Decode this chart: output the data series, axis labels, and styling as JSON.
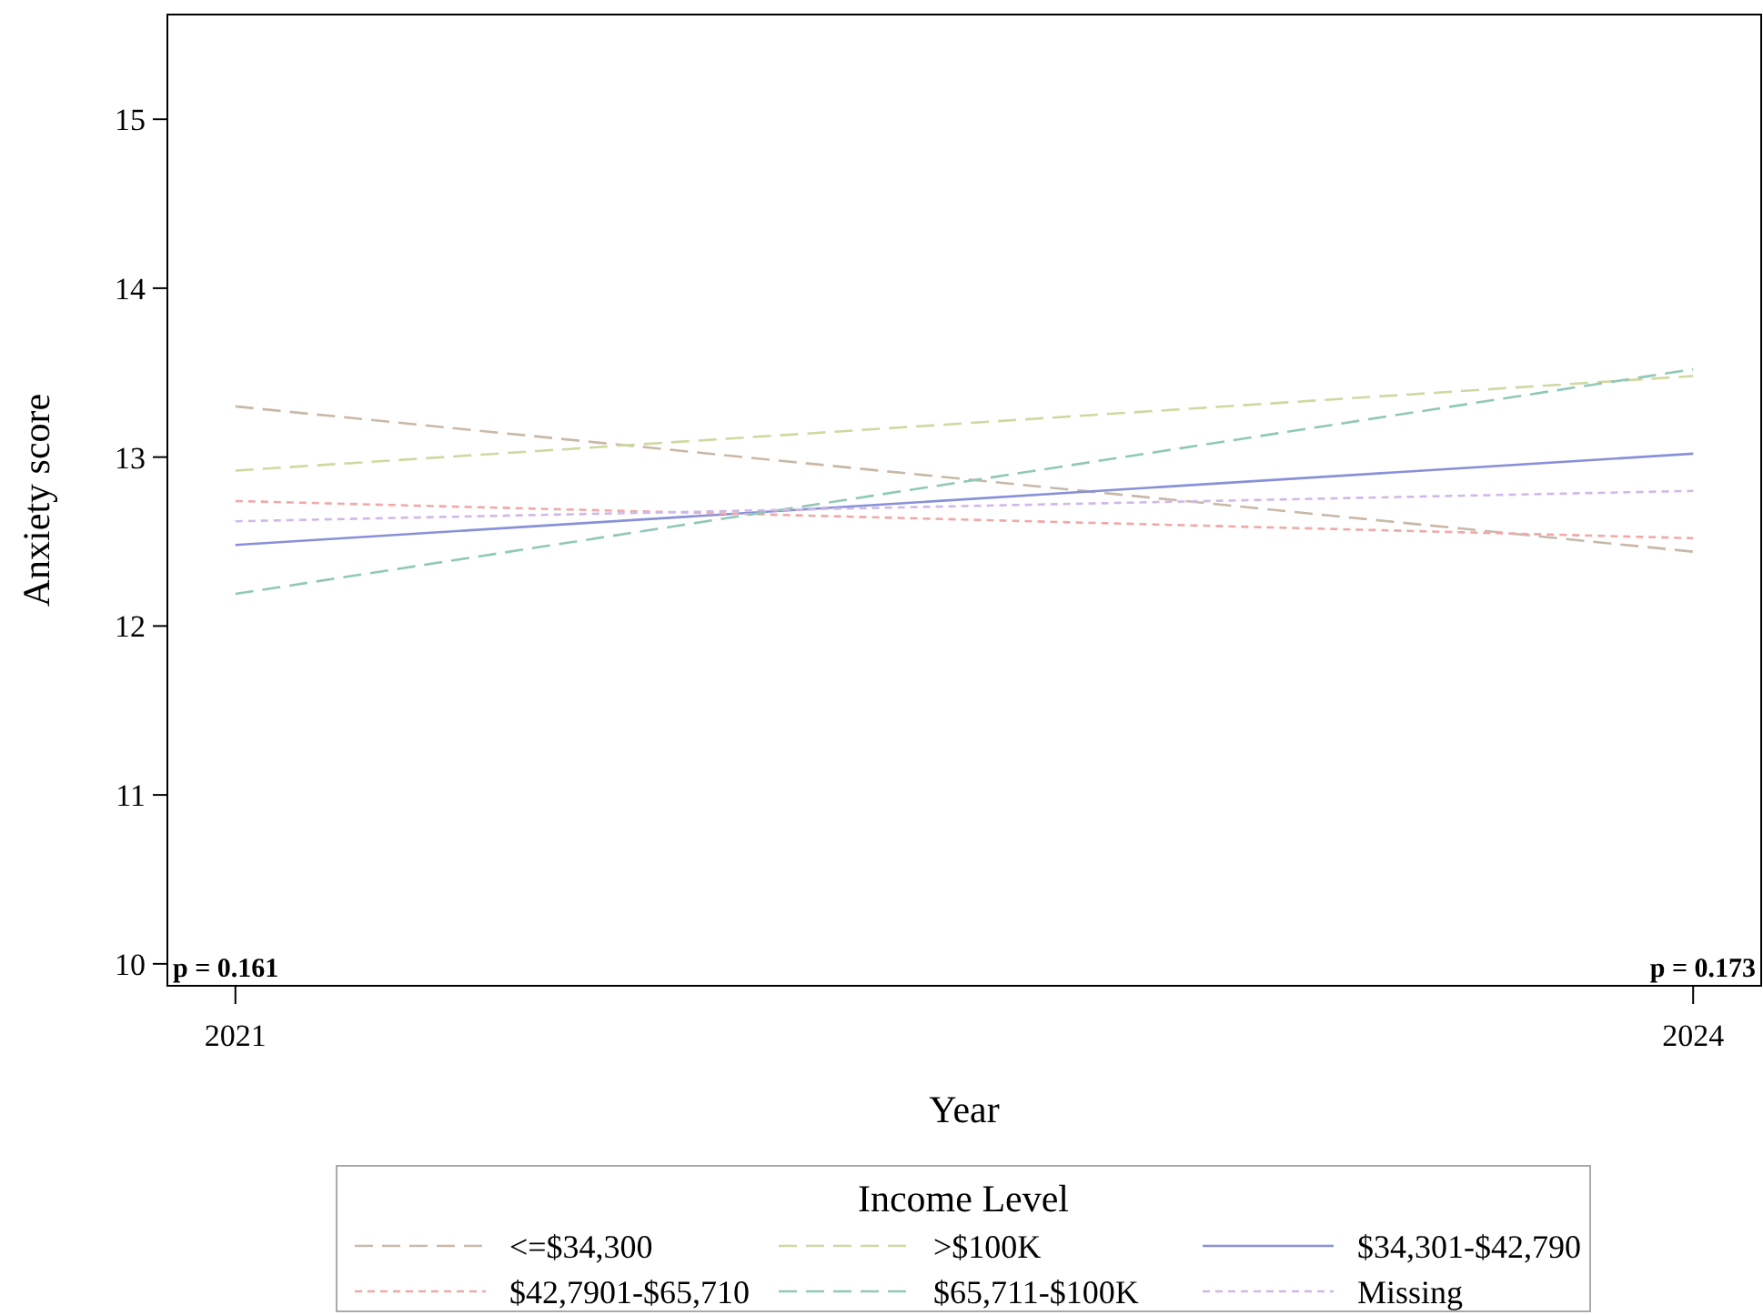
{
  "chart_data": {
    "type": "line",
    "xlabel": "Year",
    "ylabel": "Anxiety score",
    "legend_title": "Income Level",
    "legend": "bottom",
    "x": [
      2021,
      2024
    ],
    "xlim": [
      2020.86,
      2024.14
    ],
    "xticks": [
      2021,
      2024
    ],
    "ylim": [
      9.87,
      15.62
    ],
    "yticks": [
      10,
      11,
      12,
      13,
      14,
      15
    ],
    "grid": false,
    "marker": "none",
    "series": [
      {
        "name": "<=$34,300",
        "color": "#c8b8a8",
        "line_style": "dashed",
        "values": [
          13.3,
          12.44
        ]
      },
      {
        "name": ">$100K",
        "color": "#d0d8a0",
        "line_style": "dashed",
        "values": [
          12.92,
          13.48
        ]
      },
      {
        "name": "$34,301-$42,790",
        "color": "#8890d8",
        "line_style": "solid",
        "values": [
          12.48,
          13.02
        ]
      },
      {
        "name": "$42,7901-$65,710",
        "color": "#f0a8a8",
        "line_style": "dotted",
        "values": [
          12.74,
          12.52
        ]
      },
      {
        "name": "$65,711-$100K",
        "color": "#90c8b8",
        "line_style": "dashed",
        "values": [
          12.19,
          13.52
        ]
      },
      {
        "name": "Missing",
        "color": "#d0b8e8",
        "line_style": "dotted",
        "values": [
          12.62,
          12.8
        ]
      }
    ],
    "annotations": [
      "p = 0.161",
      "p = 0.173"
    ]
  }
}
